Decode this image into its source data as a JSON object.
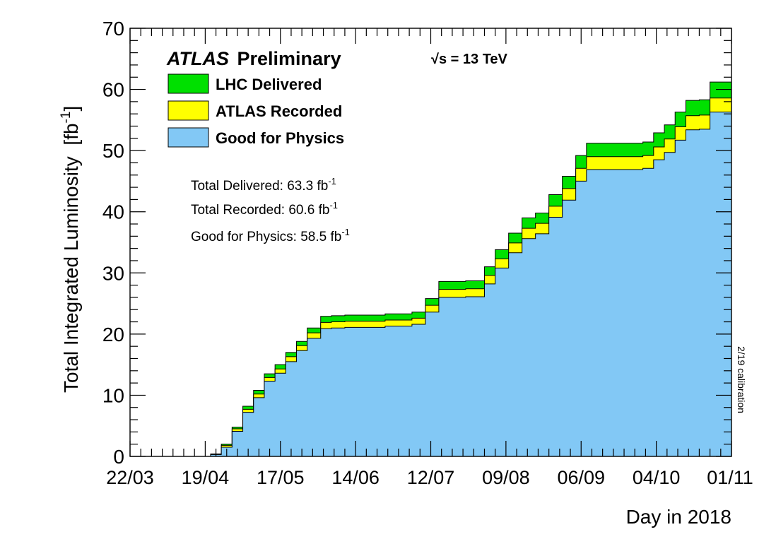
{
  "chart_data": {
    "type": "area",
    "ylabel_main": "Total Integrated Luminosity",
    "ylabel_unit": "[fb",
    "ylabel_unit_sup": "-1",
    "ylabel_unit_close": "]",
    "xlabel": "Day in 2018",
    "ylim": [
      0,
      70
    ],
    "yticks": [
      "0",
      "10",
      "20",
      "30",
      "40",
      "50",
      "60",
      "70"
    ],
    "xlim": [
      "2018-03-22",
      "2018-11-01"
    ],
    "xticks": [
      "22/03",
      "19/04",
      "17/05",
      "14/06",
      "12/07",
      "09/08",
      "06/09",
      "04/10",
      "01/11"
    ],
    "x_dates": [
      "2018-03-22",
      "2018-04-17",
      "2018-04-21",
      "2018-04-25",
      "2018-04-29",
      "2018-05-03",
      "2018-05-07",
      "2018-05-11",
      "2018-05-15",
      "2018-05-19",
      "2018-05-23",
      "2018-05-27",
      "2018-06-01",
      "2018-06-05",
      "2018-06-10",
      "2018-06-15",
      "2018-06-25",
      "2018-07-05",
      "2018-07-10",
      "2018-07-15",
      "2018-07-20",
      "2018-07-25",
      "2018-08-01",
      "2018-08-05",
      "2018-08-10",
      "2018-08-15",
      "2018-08-20",
      "2018-08-25",
      "2018-08-30",
      "2018-09-04",
      "2018-09-08",
      "2018-09-15",
      "2018-09-22",
      "2018-09-29",
      "2018-10-03",
      "2018-10-07",
      "2018-10-11",
      "2018-10-15",
      "2018-10-20",
      "2018-10-24",
      "2018-11-01"
    ],
    "series": [
      {
        "name": "LHC Delivered",
        "color": "#00e000",
        "values": [
          0,
          0,
          0.4,
          2.0,
          4.8,
          8.2,
          10.8,
          13.5,
          15.0,
          17.0,
          18.8,
          21.0,
          22.9,
          23.0,
          23.1,
          23.1,
          23.3,
          23.6,
          25.8,
          28.6,
          28.6,
          28.7,
          31.0,
          33.8,
          36.5,
          39.0,
          39.8,
          42.8,
          45.8,
          49.2,
          51.2,
          51.2,
          51.2,
          51.4,
          52.9,
          54.2,
          56.3,
          58.2,
          58.3,
          61.2,
          63.3
        ]
      },
      {
        "name": "ATLAS Recorded",
        "color": "#ffff00",
        "values": [
          0,
          0,
          0.35,
          1.8,
          4.5,
          7.7,
          10.2,
          12.9,
          14.3,
          16.3,
          18.1,
          20.2,
          21.9,
          22.0,
          22.1,
          22.1,
          22.3,
          22.6,
          24.7,
          27.3,
          27.3,
          27.4,
          29.6,
          32.3,
          34.9,
          37.3,
          38.1,
          40.9,
          43.8,
          47.1,
          49.0,
          49.0,
          49.0,
          49.2,
          50.6,
          51.9,
          53.9,
          55.7,
          55.8,
          58.6,
          60.6
        ]
      },
      {
        "name": "Good for Physics",
        "color": "#82c8f5",
        "values": [
          0,
          0,
          0.3,
          1.5,
          4.1,
          7.2,
          9.6,
          12.3,
          13.6,
          15.5,
          17.3,
          19.3,
          20.9,
          21.0,
          21.1,
          21.1,
          21.3,
          21.6,
          23.6,
          26.0,
          26.0,
          26.1,
          28.2,
          30.8,
          33.3,
          35.6,
          36.4,
          39.1,
          41.9,
          45.0,
          46.9,
          46.9,
          46.9,
          47.1,
          48.5,
          49.7,
          51.7,
          53.4,
          53.5,
          56.3,
          58.5
        ]
      }
    ],
    "legend_title_italic": "ATLAS",
    "legend_title_rest": "Preliminary",
    "energy_label": "√s = 13 TeV",
    "legend_position": "top-left",
    "totals": [
      {
        "label": "Total Delivered: 63.3 fb",
        "sup": "-1"
      },
      {
        "label": "Total Recorded: 60.6 fb",
        "sup": "-1"
      },
      {
        "label": "Good for Physics: 58.5 fb",
        "sup": "-1"
      }
    ],
    "calibration_note": "2/19 calibration",
    "grid": false
  }
}
